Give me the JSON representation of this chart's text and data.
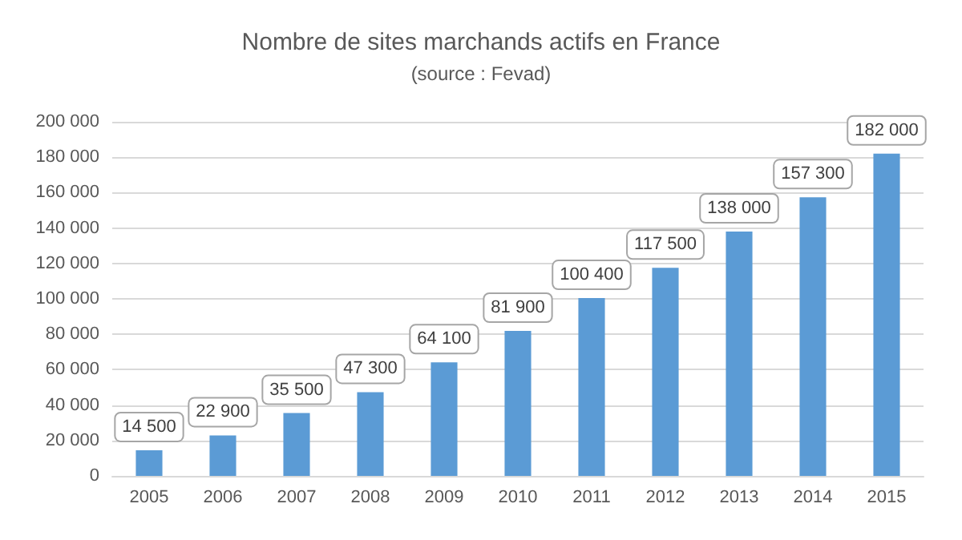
{
  "chart_data": {
    "type": "bar",
    "title": "Nombre de sites marchands actifs en France",
    "subtitle": "(source : Fevad)",
    "categories": [
      "2005",
      "2006",
      "2007",
      "2008",
      "2009",
      "2010",
      "2011",
      "2012",
      "2013",
      "2014",
      "2015"
    ],
    "values": [
      14500,
      22900,
      35500,
      47300,
      64100,
      81900,
      100400,
      117500,
      138000,
      157300,
      182000
    ],
    "value_labels": [
      "14 500",
      "22 900",
      "35 500",
      "47 300",
      "64 100",
      "81 900",
      "100 400",
      "117 500",
      "138 000",
      "157 300",
      "182 000"
    ],
    "color": "#5b9bd5",
    "ylim": [
      0,
      200000
    ],
    "yticks": [
      {
        "value": 0,
        "label": "0"
      },
      {
        "value": 20000,
        "label": "20 000"
      },
      {
        "value": 40000,
        "label": "40 000"
      },
      {
        "value": 60000,
        "label": "60 000"
      },
      {
        "value": 80000,
        "label": "80 000"
      },
      {
        "value": 100000,
        "label": "100 000"
      },
      {
        "value": 120000,
        "label": "120 000"
      },
      {
        "value": 140000,
        "label": "140 000"
      },
      {
        "value": 160000,
        "label": "160 000"
      },
      {
        "value": 180000,
        "label": "180 000"
      },
      {
        "value": 200000,
        "label": "200 000"
      }
    ],
    "grid": true
  }
}
